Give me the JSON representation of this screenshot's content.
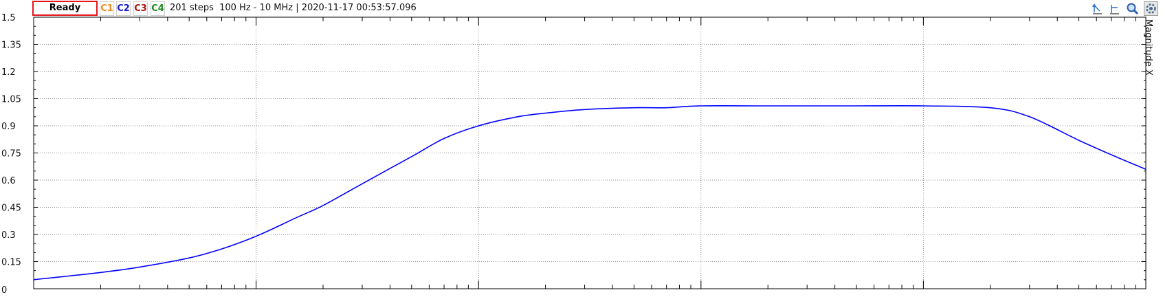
{
  "toolbar": {
    "status": "Ready",
    "channels": [
      {
        "label": "C1",
        "color": "#f28c1e"
      },
      {
        "label": "C2",
        "color": "#1a1ad6"
      },
      {
        "label": "C3",
        "color": "#a01616"
      },
      {
        "label": "C4",
        "color": "#1a8a1a"
      }
    ],
    "info": "201 steps  100 Hz - 10 MHz | 2020-11-17 00:53:57.096",
    "tools": [
      "cursor-marker-icon",
      "reference-marker-icon",
      "zoom-icon",
      "settings-icon"
    ]
  },
  "chart_data": {
    "type": "line",
    "title": "",
    "xlabel": "",
    "ylabel": "Magnitude  X",
    "x_scale": "log",
    "xlim": [
      100,
      10000000
    ],
    "ylim": [
      0,
      1.5
    ],
    "yticks": [
      "0",
      "0.15",
      "0.3",
      "0.45",
      "0.6",
      "0.75",
      "0.9",
      "1.05",
      "1.2",
      "1.35",
      "1.5"
    ],
    "grid": true,
    "series": [
      {
        "color": "#0000ff",
        "x": [
          100,
          200,
          300,
          500,
          700,
          1000,
          1500,
          2000,
          3000,
          5000,
          7000,
          10000,
          15000,
          20000,
          30000,
          50000,
          70000,
          100000,
          200000,
          500000,
          1000000,
          2000000,
          3000000,
          5000000,
          7000000,
          10000000
        ],
        "y": [
          0.05,
          0.09,
          0.12,
          0.17,
          0.22,
          0.29,
          0.39,
          0.46,
          0.58,
          0.73,
          0.83,
          0.9,
          0.95,
          0.97,
          0.99,
          1.0,
          1.0,
          1.01,
          1.01,
          1.01,
          1.01,
          1.0,
          0.95,
          0.82,
          0.74,
          0.66
        ]
      }
    ]
  }
}
